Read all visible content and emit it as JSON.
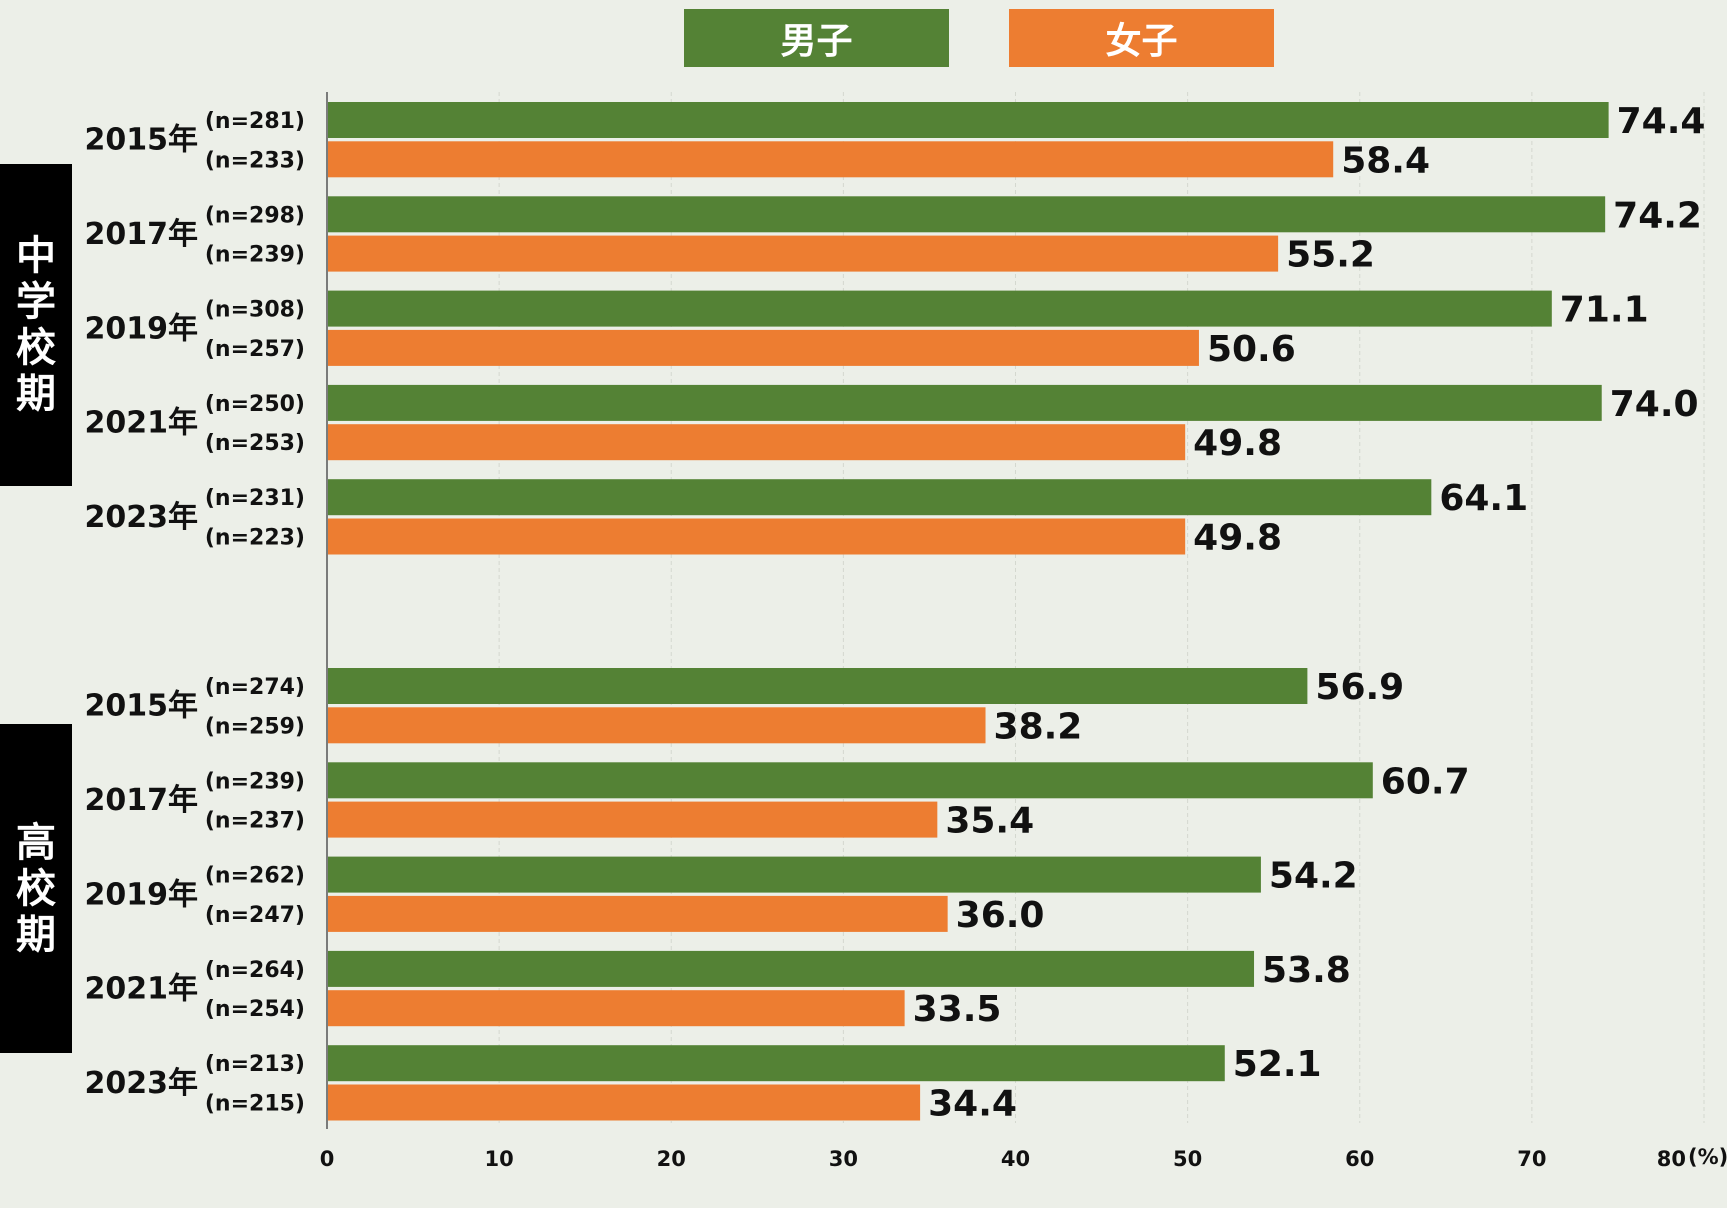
{
  "legend": [
    {
      "label": "男子",
      "color": "#548235"
    },
    {
      "label": "女子",
      "color": "#ed7d31"
    }
  ],
  "sections": [
    {
      "label": "中学校期",
      "chars": [
        "中",
        "学",
        "校",
        "期"
      ]
    },
    {
      "label": "高校期",
      "chars": [
        "高",
        "校",
        "期"
      ]
    }
  ],
  "chart_data": {
    "type": "bar",
    "orientation": "horizontal",
    "x_range": [
      0,
      80
    ],
    "x_ticks": [
      0,
      10,
      20,
      30,
      40,
      50,
      60,
      70,
      80
    ],
    "x_unit_label": "(%)",
    "series": [
      {
        "name": "男子",
        "color": "#548235"
      },
      {
        "name": "女子",
        "color": "#ed7d31"
      }
    ],
    "groups": [
      {
        "section": "中学校期",
        "year": "2015年",
        "rows": [
          {
            "n": "(n=281)",
            "value": 74.4,
            "label": "74.4"
          },
          {
            "n": "(n=233)",
            "value": 58.4,
            "label": "58.4"
          }
        ]
      },
      {
        "section": "中学校期",
        "year": "2017年",
        "rows": [
          {
            "n": "(n=298)",
            "value": 74.2,
            "label": "74.2"
          },
          {
            "n": "(n=239)",
            "value": 55.2,
            "label": "55.2"
          }
        ]
      },
      {
        "section": "中学校期",
        "year": "2019年",
        "rows": [
          {
            "n": "(n=308)",
            "value": 71.1,
            "label": "71.1"
          },
          {
            "n": "(n=257)",
            "value": 50.6,
            "label": "50.6"
          }
        ]
      },
      {
        "section": "中学校期",
        "year": "2021年",
        "rows": [
          {
            "n": "(n=250)",
            "value": 74.0,
            "label": "74.0"
          },
          {
            "n": "(n=253)",
            "value": 49.8,
            "label": "49.8"
          }
        ]
      },
      {
        "section": "中学校期",
        "year": "2023年",
        "rows": [
          {
            "n": "(n=231)",
            "value": 64.1,
            "label": "64.1"
          },
          {
            "n": "(n=223)",
            "value": 49.8,
            "label": "49.8"
          }
        ]
      },
      {
        "section": "高校期",
        "year": "2015年",
        "rows": [
          {
            "n": "(n=274)",
            "value": 56.9,
            "label": "56.9"
          },
          {
            "n": "(n=259)",
            "value": 38.2,
            "label": "38.2"
          }
        ]
      },
      {
        "section": "高校期",
        "year": "2017年",
        "rows": [
          {
            "n": "(n=239)",
            "value": 60.7,
            "label": "60.7"
          },
          {
            "n": "(n=237)",
            "value": 35.4,
            "label": "35.4"
          }
        ]
      },
      {
        "section": "高校期",
        "year": "2019年",
        "rows": [
          {
            "n": "(n=262)",
            "value": 54.2,
            "label": "54.2"
          },
          {
            "n": "(n=247)",
            "value": 36.0,
            "label": "36.0"
          }
        ]
      },
      {
        "section": "高校期",
        "year": "2021年",
        "rows": [
          {
            "n": "(n=264)",
            "value": 53.8,
            "label": "53.8"
          },
          {
            "n": "(n=254)",
            "value": 33.5,
            "label": "33.5"
          }
        ]
      },
      {
        "section": "高校期",
        "year": "2023年",
        "rows": [
          {
            "n": "(n=213)",
            "value": 52.1,
            "label": "52.1"
          },
          {
            "n": "(n=215)",
            "value": 34.4,
            "label": "34.4"
          }
        ]
      }
    ]
  }
}
